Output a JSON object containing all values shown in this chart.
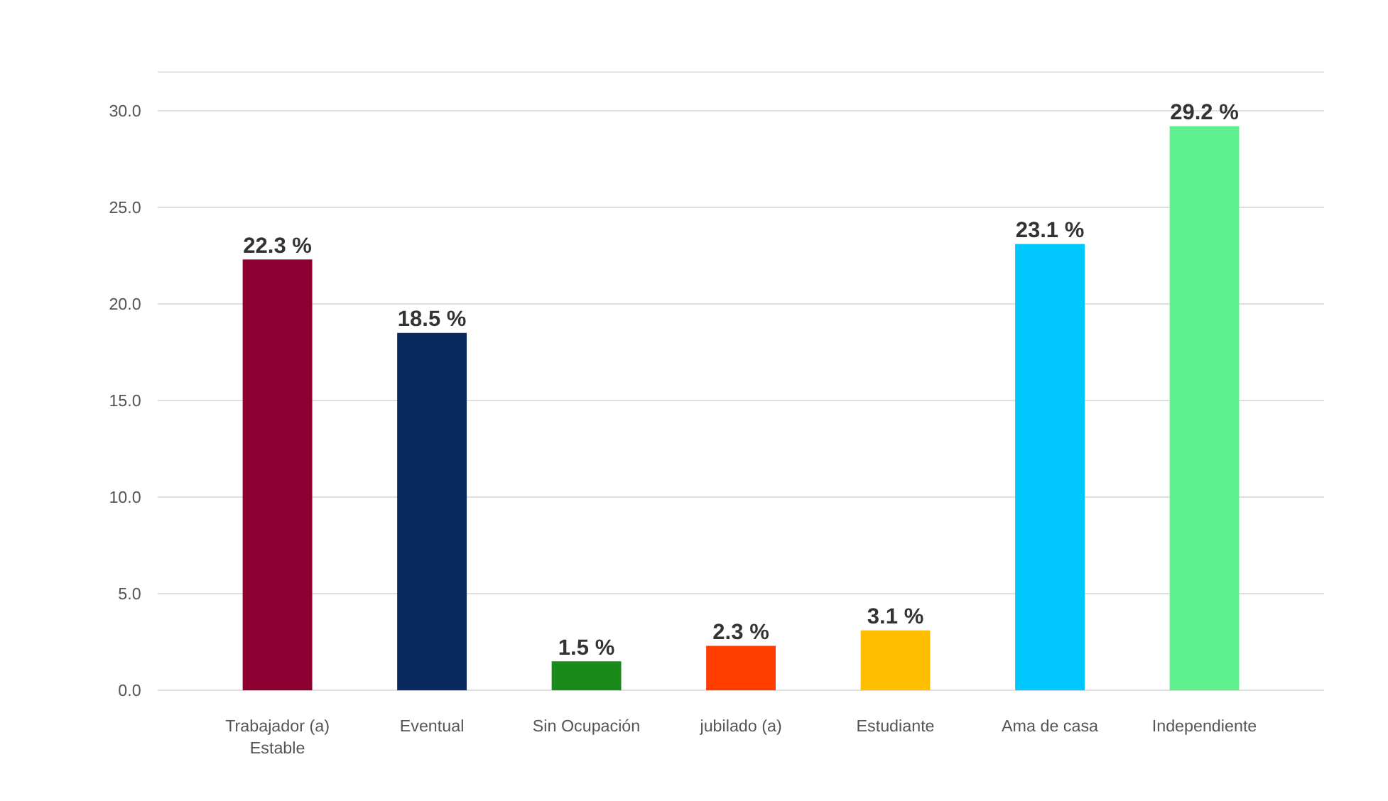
{
  "chart_data": {
    "type": "bar",
    "categories": [
      "Trabajador (a) Estable",
      "Eventual",
      "Sin Ocupación",
      "jubilado (a)",
      "Estudiante",
      "Ama de casa",
      "Independiente"
    ],
    "values": [
      22.3,
      18.5,
      1.5,
      2.3,
      3.1,
      23.1,
      29.2
    ],
    "colors": [
      "#8b0030",
      "#0a2a5e",
      "#1a8a1a",
      "#ff3d00",
      "#ffbf00",
      "#00c8ff",
      "#5ef08f"
    ],
    "value_labels": [
      "22.3 %",
      "18.5 %",
      "1.5 %",
      "2.3 %",
      "3.1 %",
      "23.1 %",
      "29.2 %"
    ],
    "ylim": [
      0,
      32
    ],
    "yticks": [
      {
        "value": 0,
        "label": "0.0"
      },
      {
        "value": 5,
        "label": "5.0"
      },
      {
        "value": 10,
        "label": "10.0"
      },
      {
        "value": 15,
        "label": "15.0"
      },
      {
        "value": 20,
        "label": "20.0"
      },
      {
        "value": 25,
        "label": "25.0"
      },
      {
        "value": 30,
        "label": "30.0"
      }
    ],
    "grid": "y"
  }
}
